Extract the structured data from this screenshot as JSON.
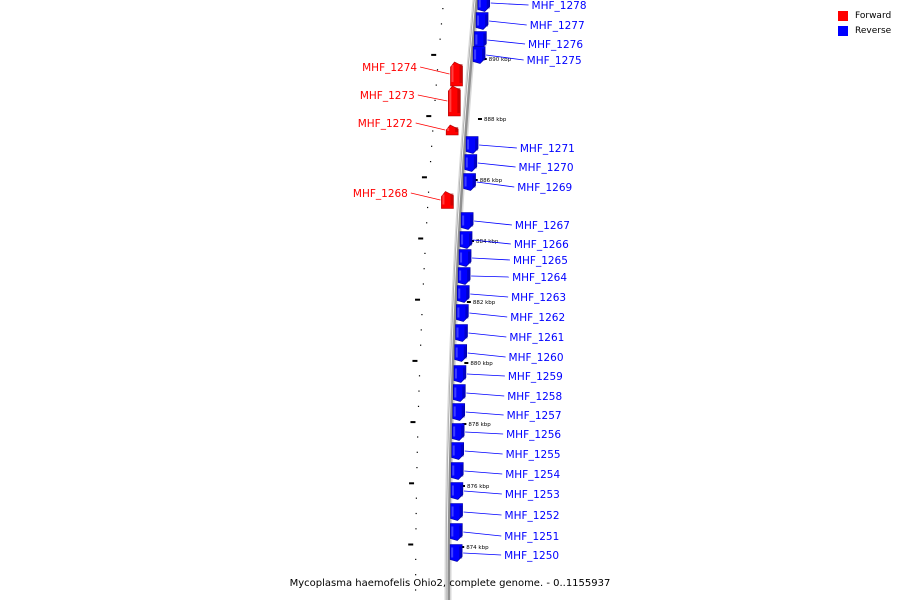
{
  "legend": {
    "forward": {
      "label": "Forward",
      "color": "#ff0000"
    },
    "reverse": {
      "label": "Reverse",
      "color": "#0000ff"
    }
  },
  "caption": "Mycoplasma haemofelis Ohio2, complete genome. - 0..1155937",
  "colors": {
    "backbone": "#909090",
    "forward": "#ff0000",
    "reverse": "#0000ff"
  },
  "ticks": [
    "890 kbp",
    "888 kbp",
    "886 kbp",
    "884 kbp",
    "882 kbp",
    "880 kbp",
    "878 kbp",
    "876 kbp",
    "874 kbp"
  ],
  "genes": [
    {
      "id": "MHF_1278",
      "strand": "reverse"
    },
    {
      "id": "MHF_1277",
      "strand": "reverse"
    },
    {
      "id": "MHF_1276",
      "strand": "reverse"
    },
    {
      "id": "MHF_1275",
      "strand": "reverse"
    },
    {
      "id": "MHF_1274",
      "strand": "forward"
    },
    {
      "id": "MHF_1273",
      "strand": "forward"
    },
    {
      "id": "MHF_1272",
      "strand": "forward"
    },
    {
      "id": "MHF_1271",
      "strand": "reverse"
    },
    {
      "id": "MHF_1270",
      "strand": "reverse"
    },
    {
      "id": "MHF_1269",
      "strand": "reverse"
    },
    {
      "id": "MHF_1268",
      "strand": "forward"
    },
    {
      "id": "MHF_1267",
      "strand": "reverse"
    },
    {
      "id": "MHF_1266",
      "strand": "reverse"
    },
    {
      "id": "MHF_1265",
      "strand": "reverse"
    },
    {
      "id": "MHF_1264",
      "strand": "reverse"
    },
    {
      "id": "MHF_1263",
      "strand": "reverse"
    },
    {
      "id": "MHF_1262",
      "strand": "reverse"
    },
    {
      "id": "MHF_1261",
      "strand": "reverse"
    },
    {
      "id": "MHF_1260",
      "strand": "reverse"
    },
    {
      "id": "MHF_1259",
      "strand": "reverse"
    },
    {
      "id": "MHF_1258",
      "strand": "reverse"
    },
    {
      "id": "MHF_1257",
      "strand": "reverse"
    },
    {
      "id": "MHF_1256",
      "strand": "reverse"
    },
    {
      "id": "MHF_1255",
      "strand": "reverse"
    },
    {
      "id": "MHF_1254",
      "strand": "reverse"
    },
    {
      "id": "MHF_1253",
      "strand": "reverse"
    },
    {
      "id": "MHF_1252",
      "strand": "reverse"
    },
    {
      "id": "MHF_1251",
      "strand": "reverse"
    },
    {
      "id": "MHF_1250",
      "strand": "reverse"
    }
  ]
}
